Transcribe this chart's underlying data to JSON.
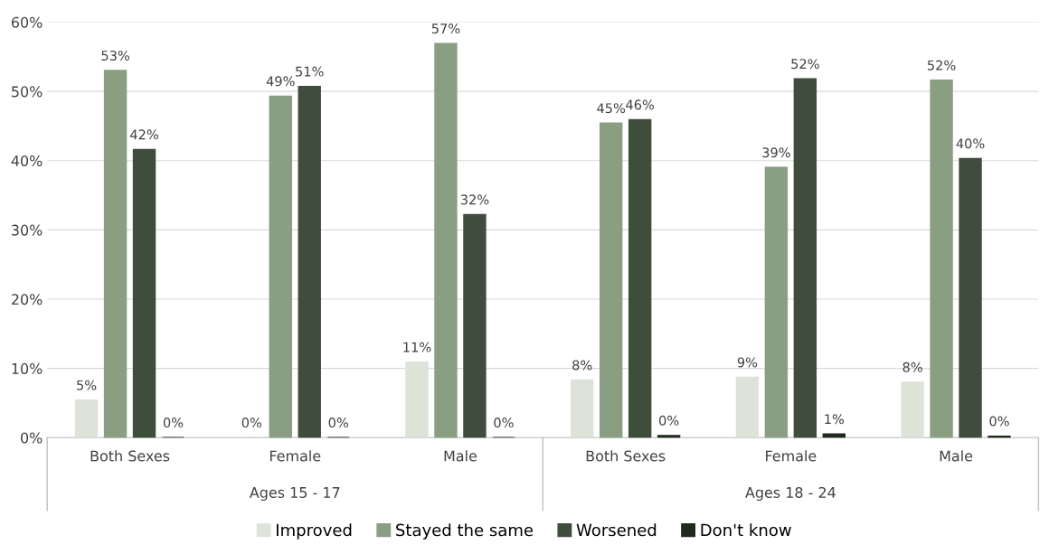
{
  "chart_data": {
    "type": "bar",
    "categories": [
      "Both Sexes",
      "Female",
      "Male",
      "Both Sexes",
      "Female",
      "Male"
    ],
    "series": [
      {
        "name": "Improved",
        "color": "#dde3d9",
        "values": [
          5.4,
          0,
          10.9,
          8.3,
          8.7,
          8.0
        ],
        "value_labels": [
          "5%",
          "0%",
          "11%",
          "8%",
          "9%",
          "8%"
        ]
      },
      {
        "name": "Stayed the same",
        "color": "#8a9e82",
        "values": [
          53.0,
          49.3,
          56.9,
          45.4,
          39.0,
          51.6
        ],
        "value_labels": [
          "53%",
          "49%",
          "57%",
          "45%",
          "39%",
          "52%"
        ]
      },
      {
        "name": "Worsened",
        "color": "#3f4e3c",
        "values": [
          41.6,
          50.7,
          32.2,
          45.9,
          51.8,
          40.3
        ],
        "value_labels": [
          "42%",
          "51%",
          "32%",
          "46%",
          "52%",
          "40%"
        ]
      },
      {
        "name": "Don't know",
        "color": "#1f2a1d",
        "values": [
          0,
          0,
          0,
          0.3,
          0.5,
          0.2
        ],
        "value_labels": [
          "0%",
          "0%",
          "0%",
          "0%",
          "1%",
          "0%"
        ]
      }
    ],
    "annotations": [
      "Ages 15 - 17",
      "Ages 18 - 24"
    ],
    "ylim": [
      0,
      60
    ],
    "yticks": [
      {
        "value": 0,
        "label": "0%"
      },
      {
        "value": 10,
        "label": "10%"
      },
      {
        "value": 20,
        "label": "20%"
      },
      {
        "value": 30,
        "label": "30%"
      },
      {
        "value": 40,
        "label": "40%"
      },
      {
        "value": 50,
        "label": "50%"
      },
      {
        "value": 60,
        "label": "60%"
      }
    ],
    "grid": "y",
    "legend": "bottom"
  }
}
